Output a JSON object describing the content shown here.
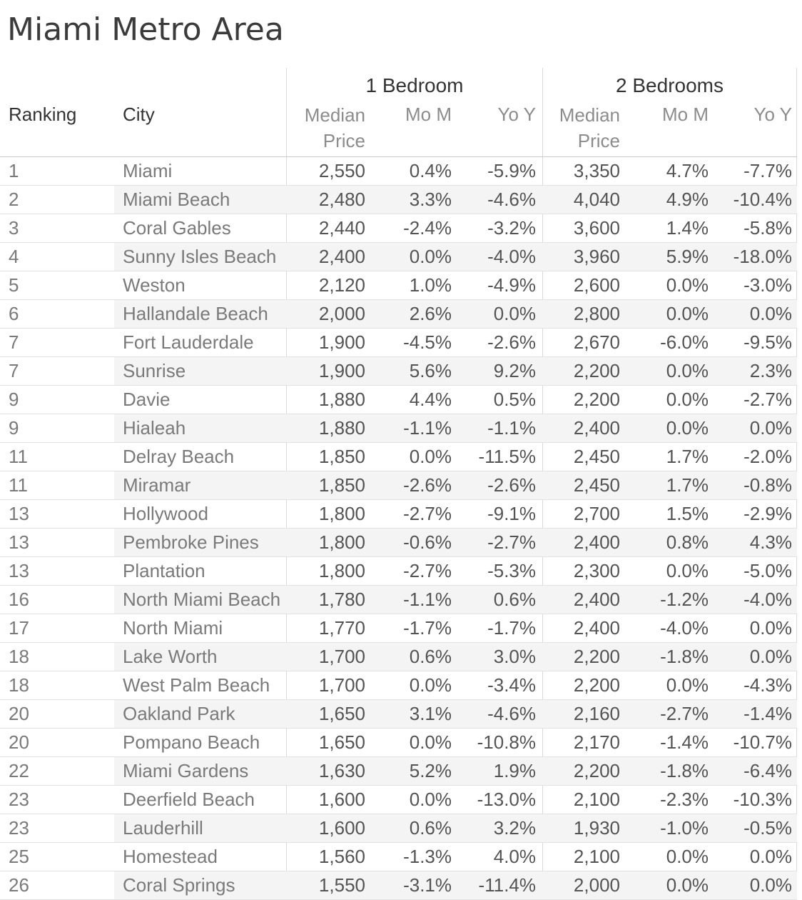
{
  "title": "Miami Metro Area",
  "header": {
    "ranking": "Ranking",
    "city": "City",
    "group_1br": "1 Bedroom",
    "group_2br": "2 Bedrooms",
    "median_line1": "Median",
    "median_line2": "Price",
    "mom": "Mo M",
    "yoy": "Yo Y"
  },
  "colors": {
    "title_text": "#3b3b3b",
    "group_header_text": "#333333",
    "subheader_text": "#8c8c8c",
    "dimension_text": "#7a7a7a",
    "value_text": "#545454",
    "row_band": "#f4f4f4",
    "row_line": "#e2e2e2",
    "header_rule": "#c9c9c9",
    "column_divider": "#d8d8d8",
    "background": "#ffffff"
  },
  "chart_data": {
    "type": "table",
    "title": "Miami Metro Area",
    "row_header_columns": [
      "Ranking",
      "City"
    ],
    "column_groups": [
      {
        "label": "1 Bedroom",
        "columns": [
          "Median Price",
          "Mo M",
          "Yo Y"
        ]
      },
      {
        "label": "2 Bedrooms",
        "columns": [
          "Median Price",
          "Mo M",
          "Yo Y"
        ]
      }
    ],
    "rows": [
      {
        "ranking": "1",
        "city": "Miami",
        "br1_price": "2,550",
        "br1_mom": "0.4%",
        "br1_yoy": "-5.9%",
        "br2_price": "3,350",
        "br2_mom": "4.7%",
        "br2_yoy": "-7.7%"
      },
      {
        "ranking": "2",
        "city": "Miami Beach",
        "br1_price": "2,480",
        "br1_mom": "3.3%",
        "br1_yoy": "-4.6%",
        "br2_price": "4,040",
        "br2_mom": "4.9%",
        "br2_yoy": "-10.4%"
      },
      {
        "ranking": "3",
        "city": "Coral Gables",
        "br1_price": "2,440",
        "br1_mom": "-2.4%",
        "br1_yoy": "-3.2%",
        "br2_price": "3,600",
        "br2_mom": "1.4%",
        "br2_yoy": "-5.8%"
      },
      {
        "ranking": "4",
        "city": "Sunny Isles Beach",
        "br1_price": "2,400",
        "br1_mom": "0.0%",
        "br1_yoy": "-4.0%",
        "br2_price": "3,960",
        "br2_mom": "5.9%",
        "br2_yoy": "-18.0%"
      },
      {
        "ranking": "5",
        "city": "Weston",
        "br1_price": "2,120",
        "br1_mom": "1.0%",
        "br1_yoy": "-4.9%",
        "br2_price": "2,600",
        "br2_mom": "0.0%",
        "br2_yoy": "-3.0%"
      },
      {
        "ranking": "6",
        "city": "Hallandale Beach",
        "br1_price": "2,000",
        "br1_mom": "2.6%",
        "br1_yoy": "0.0%",
        "br2_price": "2,800",
        "br2_mom": "0.0%",
        "br2_yoy": "0.0%"
      },
      {
        "ranking": "7",
        "city": "Fort Lauderdale",
        "br1_price": "1,900",
        "br1_mom": "-4.5%",
        "br1_yoy": "-2.6%",
        "br2_price": "2,670",
        "br2_mom": "-6.0%",
        "br2_yoy": "-9.5%"
      },
      {
        "ranking": "7",
        "city": "Sunrise",
        "br1_price": "1,900",
        "br1_mom": "5.6%",
        "br1_yoy": "9.2%",
        "br2_price": "2,200",
        "br2_mom": "0.0%",
        "br2_yoy": "2.3%"
      },
      {
        "ranking": "9",
        "city": "Davie",
        "br1_price": "1,880",
        "br1_mom": "4.4%",
        "br1_yoy": "0.5%",
        "br2_price": "2,200",
        "br2_mom": "0.0%",
        "br2_yoy": "-2.7%"
      },
      {
        "ranking": "9",
        "city": "Hialeah",
        "br1_price": "1,880",
        "br1_mom": "-1.1%",
        "br1_yoy": "-1.1%",
        "br2_price": "2,400",
        "br2_mom": "0.0%",
        "br2_yoy": "0.0%"
      },
      {
        "ranking": "11",
        "city": "Delray Beach",
        "br1_price": "1,850",
        "br1_mom": "0.0%",
        "br1_yoy": "-11.5%",
        "br2_price": "2,450",
        "br2_mom": "1.7%",
        "br2_yoy": "-2.0%"
      },
      {
        "ranking": "11",
        "city": "Miramar",
        "br1_price": "1,850",
        "br1_mom": "-2.6%",
        "br1_yoy": "-2.6%",
        "br2_price": "2,450",
        "br2_mom": "1.7%",
        "br2_yoy": "-0.8%"
      },
      {
        "ranking": "13",
        "city": "Hollywood",
        "br1_price": "1,800",
        "br1_mom": "-2.7%",
        "br1_yoy": "-9.1%",
        "br2_price": "2,700",
        "br2_mom": "1.5%",
        "br2_yoy": "-2.9%"
      },
      {
        "ranking": "13",
        "city": "Pembroke Pines",
        "br1_price": "1,800",
        "br1_mom": "-0.6%",
        "br1_yoy": "-2.7%",
        "br2_price": "2,400",
        "br2_mom": "0.8%",
        "br2_yoy": "4.3%"
      },
      {
        "ranking": "13",
        "city": "Plantation",
        "br1_price": "1,800",
        "br1_mom": "-2.7%",
        "br1_yoy": "-5.3%",
        "br2_price": "2,300",
        "br2_mom": "0.0%",
        "br2_yoy": "-5.0%"
      },
      {
        "ranking": "16",
        "city": "North Miami Beach",
        "br1_price": "1,780",
        "br1_mom": "-1.1%",
        "br1_yoy": "0.6%",
        "br2_price": "2,400",
        "br2_mom": "-1.2%",
        "br2_yoy": "-4.0%"
      },
      {
        "ranking": "17",
        "city": "North Miami",
        "br1_price": "1,770",
        "br1_mom": "-1.7%",
        "br1_yoy": "-1.7%",
        "br2_price": "2,400",
        "br2_mom": "-4.0%",
        "br2_yoy": "0.0%"
      },
      {
        "ranking": "18",
        "city": "Lake Worth",
        "br1_price": "1,700",
        "br1_mom": "0.6%",
        "br1_yoy": "3.0%",
        "br2_price": "2,200",
        "br2_mom": "-1.8%",
        "br2_yoy": "0.0%"
      },
      {
        "ranking": "18",
        "city": "West Palm Beach",
        "br1_price": "1,700",
        "br1_mom": "0.0%",
        "br1_yoy": "-3.4%",
        "br2_price": "2,200",
        "br2_mom": "0.0%",
        "br2_yoy": "-4.3%"
      },
      {
        "ranking": "20",
        "city": "Oakland Park",
        "br1_price": "1,650",
        "br1_mom": "3.1%",
        "br1_yoy": "-4.6%",
        "br2_price": "2,160",
        "br2_mom": "-2.7%",
        "br2_yoy": "-1.4%"
      },
      {
        "ranking": "20",
        "city": "Pompano Beach",
        "br1_price": "1,650",
        "br1_mom": "0.0%",
        "br1_yoy": "-10.8%",
        "br2_price": "2,170",
        "br2_mom": "-1.4%",
        "br2_yoy": "-10.7%"
      },
      {
        "ranking": "22",
        "city": "Miami Gardens",
        "br1_price": "1,630",
        "br1_mom": "5.2%",
        "br1_yoy": "1.9%",
        "br2_price": "2,200",
        "br2_mom": "-1.8%",
        "br2_yoy": "-6.4%"
      },
      {
        "ranking": "23",
        "city": "Deerfield Beach",
        "br1_price": "1,600",
        "br1_mom": "0.0%",
        "br1_yoy": "-13.0%",
        "br2_price": "2,100",
        "br2_mom": "-2.3%",
        "br2_yoy": "-10.3%"
      },
      {
        "ranking": "23",
        "city": "Lauderhill",
        "br1_price": "1,600",
        "br1_mom": "0.6%",
        "br1_yoy": "3.2%",
        "br2_price": "1,930",
        "br2_mom": "-1.0%",
        "br2_yoy": "-0.5%"
      },
      {
        "ranking": "25",
        "city": "Homestead",
        "br1_price": "1,560",
        "br1_mom": "-1.3%",
        "br1_yoy": "4.0%",
        "br2_price": "2,100",
        "br2_mom": "0.0%",
        "br2_yoy": "0.0%"
      },
      {
        "ranking": "26",
        "city": "Coral Springs",
        "br1_price": "1,550",
        "br1_mom": "-3.1%",
        "br1_yoy": "-11.4%",
        "br2_price": "2,000",
        "br2_mom": "0.0%",
        "br2_yoy": "0.0%"
      }
    ]
  }
}
